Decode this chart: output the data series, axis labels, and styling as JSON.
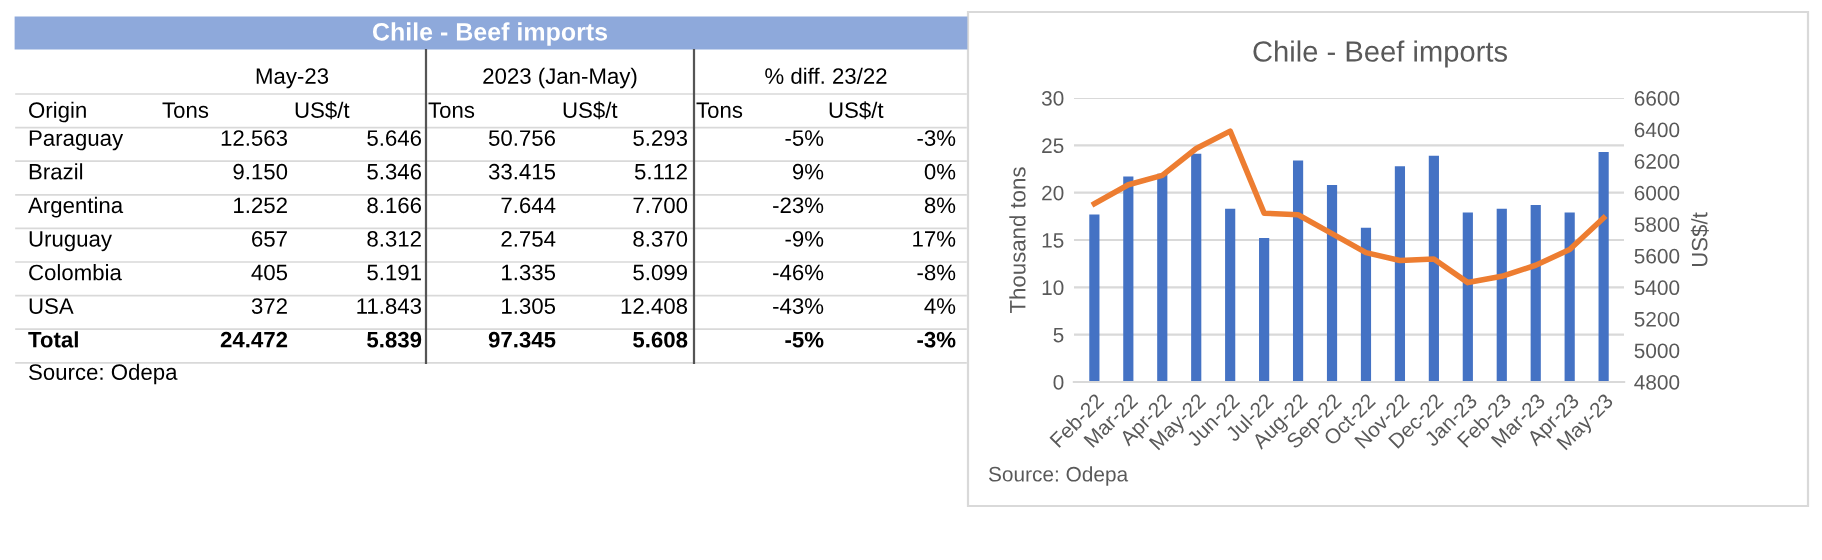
{
  "chart_data": [
    {
      "type": "other",
      "title": "Chile - Beef imports",
      "ylabel": "Origin",
      "categories": [
        "Tons",
        "US$/t",
        "Tons",
        "US$/t",
        "Tons",
        "US$/t"
      ],
      "y_categories": [
        "Paraguay",
        "Brazil",
        "Argentina",
        "Uruguay",
        "Colombia",
        "USA",
        "Total"
      ],
      "cell_labels": [
        [
          "12.563",
          "5.646",
          "50.756",
          "5.293",
          "-5%",
          "-3%"
        ],
        [
          "9.150",
          "5.346",
          "33.415",
          "5.112",
          "9%",
          "0%"
        ],
        [
          "1.252",
          "8.166",
          "7.644",
          "7.700",
          "-23%",
          "8%"
        ],
        [
          "657",
          "8.312",
          "2.754",
          "8.370",
          "-9%",
          "17%"
        ],
        [
          "405",
          "5.191",
          "1.335",
          "5.099",
          "-46%",
          "-8%"
        ],
        [
          "372",
          "11.843",
          "1.305",
          "12.408",
          "-43%",
          "4%"
        ],
        [
          "24.472",
          "5.839",
          "97.345",
          "5.608",
          "-5%",
          "-3%"
        ]
      ],
      "annotations": [
        "May-23",
        "2023 (Jan-May)",
        "% diff. 23/22",
        "Source: Odepa"
      ]
    },
    {
      "type": "bar",
      "title": "Chile - Beef imports",
      "ylabel": "Thousand tons",
      "y2label": "US$/t",
      "categories": [
        "Feb-22",
        "Mar-22",
        "Apr-22",
        "May-22",
        "Jun-22",
        "Jul-22",
        "Aug-22",
        "Sep-22",
        "Oct-22",
        "Nov-22",
        "Dec-22",
        "Jan-23",
        "Feb-23",
        "Mar-23",
        "Apr-23",
        "May-23"
      ],
      "series": [
        {
          "type": "bar",
          "color": "#4472c4",
          "values": [
            17.7,
            21.7,
            22.0,
            24.1,
            18.3,
            15.2,
            23.4,
            20.8,
            16.3,
            22.8,
            23.9,
            17.9,
            18.3,
            18.7,
            17.9,
            24.3
          ]
        },
        {
          "type": "line",
          "axis": "y2",
          "color": "#ed7d31",
          "values": [
            5930,
            6050,
            6110,
            6280,
            6390,
            5870,
            5860,
            5740,
            5620,
            5570,
            5580,
            5430,
            5470,
            5540,
            5640,
            5840
          ]
        }
      ],
      "ylim": [
        0,
        30
      ],
      "yticks": [
        0,
        5,
        10,
        15,
        20,
        25,
        30
      ],
      "y2lim": [
        4800,
        6600
      ],
      "y2ticks": [
        4800,
        5000,
        5200,
        5400,
        5600,
        5800,
        6000,
        6200,
        6400,
        6600
      ],
      "grid": "y",
      "legend": false,
      "marker": "none",
      "line_style": "solid",
      "annotations": [
        "Source: Odepa"
      ]
    }
  ]
}
